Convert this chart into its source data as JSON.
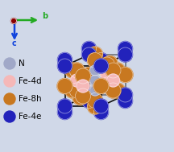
{
  "background_color": "#d0d8e8",
  "legend": {
    "Fe4e": {
      "color": "#2222bb",
      "label": "Fe-4e"
    },
    "Fe8h": {
      "color": "#c87820",
      "label": "Fe-8h"
    },
    "Fe4d": {
      "color": "#f5b8b8",
      "label": "Fe-4d"
    },
    "N": {
      "color": "#a0a8c8",
      "label": "N"
    }
  },
  "legend_fontsize": 7.5,
  "title": ""
}
